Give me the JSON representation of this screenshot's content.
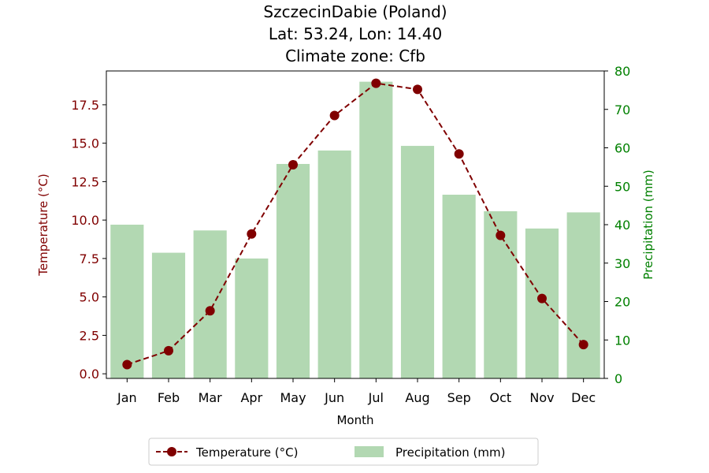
{
  "chart_data": {
    "type": "bar+line",
    "title_lines": [
      "SzczecinDabie (Poland)",
      "Lat: 53.24, Lon: 14.40",
      "Climate zone: Cfb"
    ],
    "xlabel": "Month",
    "categories": [
      "Jan",
      "Feb",
      "Mar",
      "Apr",
      "May",
      "Jun",
      "Jul",
      "Aug",
      "Sep",
      "Oct",
      "Nov",
      "Dec"
    ],
    "temperature": {
      "name": "Temperature (°C)",
      "axis_label": "Temperature (°C)",
      "values": [
        0.6,
        1.5,
        4.1,
        9.1,
        13.6,
        16.8,
        18.9,
        18.5,
        14.3,
        9.0,
        4.9,
        1.9
      ],
      "ylim": [
        -0.3,
        19.7
      ],
      "ticks": [
        "0.0",
        "2.5",
        "5.0",
        "7.5",
        "10.0",
        "12.5",
        "15.0",
        "17.5"
      ],
      "color": "#800000",
      "style": "dashed line with circle markers"
    },
    "precipitation": {
      "name": "Precipitation (mm)",
      "axis_label": "Precipitation (mm)",
      "values": [
        40,
        32.7,
        38.5,
        31.2,
        55.8,
        59.3,
        77.2,
        60.5,
        47.8,
        43.5,
        39,
        43.2
      ],
      "ylim": [
        0,
        80
      ],
      "ticks": [
        "0",
        "10",
        "20",
        "30",
        "40",
        "50",
        "60",
        "70",
        "80"
      ],
      "color": "#008000",
      "bar_color": "#b2d8b2"
    },
    "legend_position": "bottom-center",
    "grid": false
  }
}
